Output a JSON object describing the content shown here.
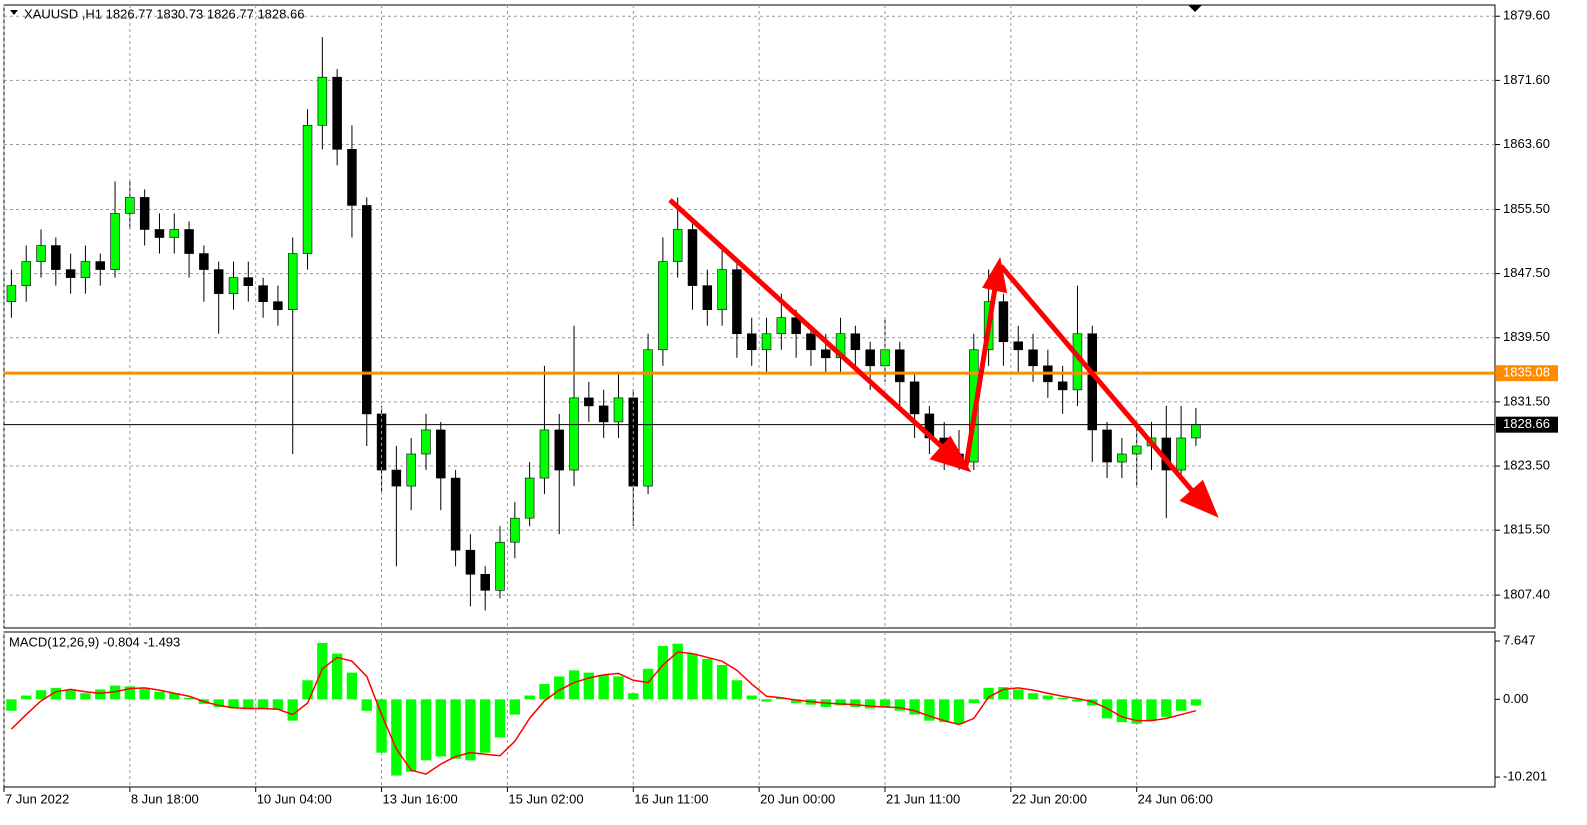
{
  "chart_data": [
    {
      "type": "candlestick",
      "title": "XAUUSD ,H1 1826.77 1830.73 1826.77 1828.66",
      "up_color": "#00ff00",
      "down_color": "#000000",
      "wick_color": "#000000",
      "open": [
        1844,
        1846,
        1849,
        1851,
        1848,
        1847,
        1849,
        1848,
        1855,
        1857,
        1853,
        1852,
        1853,
        1850,
        1848,
        1845,
        1847,
        1846,
        1844,
        1843,
        1850,
        1866,
        1872,
        1863,
        1856,
        1830,
        1823,
        1821,
        1825,
        1828,
        1822,
        1813,
        1810,
        1808,
        1814,
        1817,
        1822,
        1828,
        1823,
        1832,
        1831,
        1829,
        1832,
        1821,
        1838,
        1849,
        1853,
        1846,
        1843,
        1848,
        1840,
        1838,
        1840,
        1842,
        1840,
        1838,
        1837,
        1840,
        1838,
        1836,
        1838,
        1834,
        1830,
        1827,
        1825,
        1824,
        1838,
        1844,
        1839,
        1838,
        1836,
        1834,
        1833,
        1840,
        1828,
        1824,
        1825,
        1826,
        1827,
        1823,
        1827
      ],
      "high": [
        1848,
        1851,
        1853,
        1852,
        1850,
        1851,
        1850,
        1859,
        1859,
        1858,
        1855,
        1855,
        1854,
        1851,
        1849,
        1849,
        1849,
        1847,
        1846,
        1852,
        1868,
        1877,
        1873,
        1866,
        1857,
        1831,
        1826,
        1827,
        1830,
        1829,
        1823,
        1815,
        1811,
        1816,
        1819,
        1824,
        1836,
        1830,
        1841,
        1834,
        1833,
        1835,
        1833,
        1840,
        1852,
        1857,
        1854,
        1848,
        1851,
        1849,
        1842,
        1842,
        1845,
        1843,
        1841,
        1840,
        1842,
        1841,
        1839,
        1842,
        1839,
        1835,
        1831,
        1829,
        1828,
        1840,
        1848,
        1845,
        1841,
        1840,
        1838,
        1836,
        1846,
        1841,
        1829,
        1827,
        1829,
        1829,
        1831,
        1831,
        1830.73
      ],
      "low": [
        1842,
        1844,
        1847,
        1846,
        1845,
        1845,
        1846,
        1847,
        1853,
        1851,
        1850,
        1850,
        1847,
        1844,
        1840,
        1843,
        1844,
        1842,
        1841,
        1825,
        1848,
        1863,
        1861,
        1852,
        1826,
        1820,
        1811,
        1818,
        1823,
        1818,
        1811,
        1806,
        1805.5,
        1807,
        1812,
        1816,
        1820,
        1815,
        1821,
        1829,
        1827,
        1827,
        1816,
        1820,
        1836,
        1847,
        1843,
        1841,
        1841,
        1837,
        1836,
        1835,
        1838,
        1837,
        1836,
        1835,
        1835,
        1835,
        1833,
        1834,
        1831,
        1827,
        1825,
        1823,
        1823,
        1823,
        1836,
        1836,
        1835,
        1834,
        1832,
        1830,
        1831,
        1824,
        1822,
        1822,
        1821,
        1823,
        1817,
        1822,
        1826
      ],
      "close": [
        1846,
        1849,
        1851,
        1848,
        1847,
        1849,
        1848,
        1855,
        1857,
        1853,
        1852,
        1853,
        1850,
        1848,
        1845,
        1847,
        1846,
        1844,
        1843,
        1850,
        1866,
        1872,
        1863,
        1856,
        1830,
        1823,
        1821,
        1825,
        1828,
        1822,
        1813,
        1810,
        1808,
        1814,
        1817,
        1822,
        1828,
        1823,
        1832,
        1831,
        1829,
        1832,
        1821,
        1838,
        1849,
        1853,
        1846,
        1843,
        1848,
        1840,
        1838,
        1840,
        1842,
        1840,
        1838,
        1837,
        1840,
        1838,
        1836,
        1838,
        1834,
        1830,
        1827,
        1825,
        1824,
        1838,
        1844,
        1839,
        1838,
        1836,
        1834,
        1833,
        1840,
        1828,
        1824,
        1825,
        1826,
        1827,
        1823,
        1827,
        1828.66
      ],
      "xlim": [
        0,
        100.7
      ],
      "ylim": [
        1803.3,
        1881.0
      ],
      "yticks": [
        {
          "value": 1879.6,
          "label": "1879.60"
        },
        {
          "value": 1871.6,
          "label": "1871.60"
        },
        {
          "value": 1863.6,
          "label": "1863.60"
        },
        {
          "value": 1855.5,
          "label": "1855.50"
        },
        {
          "value": 1847.5,
          "label": "1847.50"
        },
        {
          "value": 1839.5,
          "label": "1839.50"
        },
        {
          "value": 1831.5,
          "label": "1831.50"
        },
        {
          "value": 1823.5,
          "label": "1823.50"
        },
        {
          "value": 1815.5,
          "label": "1815.50"
        },
        {
          "value": 1807.4,
          "label": "1807.40"
        }
      ],
      "levels": [
        {
          "value": 1835.08,
          "label": "1835.08",
          "color": "#ff8c00"
        },
        {
          "value": 1828.66,
          "label": "1828.66",
          "color": "#000000"
        }
      ],
      "grid": true
    },
    {
      "type": "macd",
      "title": "MACD(12,26,9) -0.804 -1.493",
      "series": [
        {
          "style": "bar",
          "color": "#00ff00",
          "values": [
            -1.5,
            0.5,
            1.2,
            1.5,
            1.2,
            0.8,
            1.3,
            1.8,
            1.7,
            1.4,
            1.0,
            0.8,
            0.2,
            -0.6,
            -1.0,
            -1.2,
            -1.3,
            -1.2,
            -1.4,
            -2.8,
            2.5,
            7.4,
            6.0,
            3.5,
            -1.5,
            -7.0,
            -10.0,
            -9.5,
            -8.0,
            -7.5,
            -7.8,
            -8.0,
            -7.0,
            -5.0,
            -2.0,
            0.5,
            2.0,
            3.0,
            3.8,
            3.5,
            3.2,
            3.0,
            0.8,
            4.0,
            7.0,
            7.3,
            6.0,
            5.3,
            4.5,
            2.5,
            0.5,
            -0.3,
            0.2,
            -0.5,
            -0.7,
            -1.0,
            -0.8,
            -1.0,
            -1.2,
            -1.0,
            -1.5,
            -2.0,
            -2.8,
            -3.0,
            -3.2,
            -0.5,
            1.5,
            1.6,
            1.3,
            0.8,
            0.5,
            0.2,
            -0.3,
            -0.8,
            -2.5,
            -3.0,
            -3.2,
            -2.8,
            -2.3,
            -1.5,
            -0.804
          ]
        },
        {
          "style": "line",
          "color": "#ff0000",
          "values": [
            -3.9,
            -2.0,
            -0.2,
            1.0,
            1.3,
            1.0,
            0.8,
            1.0,
            1.4,
            1.5,
            1.2,
            0.8,
            0.4,
            -0.3,
            -0.8,
            -1.1,
            -1.2,
            -1.2,
            -1.3,
            -2.0,
            -0.5,
            4.0,
            5.5,
            5.0,
            3.0,
            -2.0,
            -6.5,
            -9.3,
            -9.8,
            -8.5,
            -7.5,
            -7.0,
            -7.2,
            -7.4,
            -5.5,
            -2.5,
            -0.2,
            1.2,
            2.2,
            2.8,
            3.2,
            3.4,
            2.5,
            2.2,
            4.5,
            6.2,
            6.0,
            5.5,
            5.0,
            3.8,
            2.0,
            0.4,
            0.2,
            -0.1,
            -0.3,
            -0.5,
            -0.6,
            -0.7,
            -0.9,
            -1.0,
            -1.1,
            -1.5,
            -2.2,
            -2.8,
            -3.3,
            -2.5,
            0.3,
            1.3,
            1.5,
            1.2,
            0.8,
            0.4,
            0.1,
            -0.3,
            -1.2,
            -2.3,
            -2.8,
            -2.8,
            -2.5,
            -2.0,
            -1.493
          ]
        }
      ],
      "xlim": [
        0,
        100.7
      ],
      "ylim": [
        -11.5,
        8.83
      ],
      "yticks": [
        {
          "value": 7.647,
          "label": "7.647"
        },
        {
          "value": 0,
          "label": "0.00"
        },
        {
          "value": -10.201,
          "label": "-10.201"
        }
      ],
      "xticks": [
        {
          "value": 0,
          "label": "7 Jun 2022"
        },
        {
          "value": 8.5,
          "label": "8 Jun 18:00"
        },
        {
          "value": 17,
          "label": "10 Jun 04:00"
        },
        {
          "value": 25.5,
          "label": "13 Jun 16:00"
        },
        {
          "value": 34,
          "label": "15 Jun 02:00"
        },
        {
          "value": 42.5,
          "label": "16 Jun 11:00"
        },
        {
          "value": 51,
          "label": "20 Jun 00:00"
        },
        {
          "value": 59.5,
          "label": "21 Jun 11:00"
        },
        {
          "value": 68,
          "label": "22 Jun 20:00"
        },
        {
          "value": 76.5,
          "label": "24 Jun 06:00"
        }
      ],
      "grid": true
    }
  ]
}
